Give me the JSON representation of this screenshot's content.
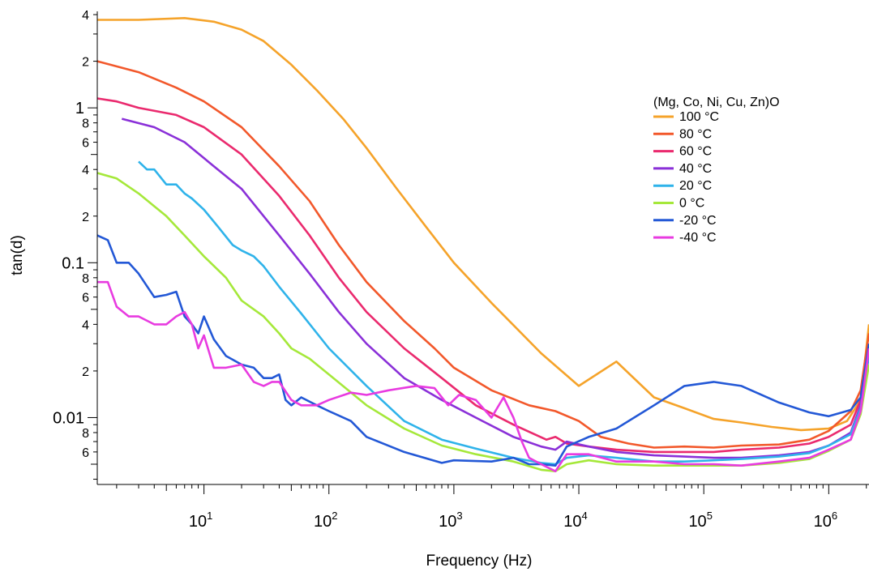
{
  "chart_data": {
    "type": "line",
    "xlabel": "Frequency (Hz)",
    "ylabel": "tan(d)",
    "xscale": "log",
    "yscale": "log",
    "xlim": [
      1.4,
      2100000
    ],
    "ylim": [
      0.0037,
      4.2
    ],
    "x_ticks": [
      {
        "base": "10",
        "exp": "1",
        "value": 10
      },
      {
        "base": "10",
        "exp": "2",
        "value": 100
      },
      {
        "base": "10",
        "exp": "3",
        "value": 1000
      },
      {
        "base": "10",
        "exp": "4",
        "value": 10000
      },
      {
        "base": "10",
        "exp": "5",
        "value": 100000
      },
      {
        "base": "10",
        "exp": "6",
        "value": 1000000
      }
    ],
    "y_major_ticks": [
      {
        "label": "1",
        "value": 1
      },
      {
        "label": "0.1",
        "value": 0.1
      },
      {
        "label": "0.01",
        "value": 0.01
      }
    ],
    "y_minor_labels": [
      {
        "label": "4",
        "value": 4
      },
      {
        "label": "2",
        "value": 2
      },
      {
        "label": "8",
        "value": 0.8
      },
      {
        "label": "6",
        "value": 0.6
      },
      {
        "label": "4",
        "value": 0.4
      },
      {
        "label": "2",
        "value": 0.2
      },
      {
        "label": "8",
        "value": 0.08
      },
      {
        "label": "6",
        "value": 0.06
      },
      {
        "label": "4",
        "value": 0.04
      },
      {
        "label": "2",
        "value": 0.02
      },
      {
        "label": "8",
        "value": 0.008
      },
      {
        "label": "6",
        "value": 0.006
      }
    ],
    "grid": false,
    "legend": {
      "title": "(Mg, Co, Ni, Cu, Zn)O",
      "position": "top-right"
    },
    "series": [
      {
        "name": "100 °C",
        "color": "#f5a32a",
        "x": [
          1.4,
          3,
          7,
          12,
          20,
          30,
          50,
          80,
          130,
          200,
          350,
          600,
          1000,
          2000,
          5000,
          10000,
          20000,
          40000,
          70000,
          120000,
          200000,
          350000,
          600000,
          1000000,
          1400000,
          1800000,
          2100000
        ],
        "y": [
          3.7,
          3.7,
          3.8,
          3.6,
          3.2,
          2.7,
          1.9,
          1.3,
          0.85,
          0.55,
          0.3,
          0.17,
          0.1,
          0.055,
          0.026,
          0.016,
          0.023,
          0.0135,
          0.0115,
          0.0098,
          0.0093,
          0.0087,
          0.0083,
          0.0085,
          0.0095,
          0.013,
          0.04
        ]
      },
      {
        "name": "80 °C",
        "color": "#f2582b",
        "x": [
          1.4,
          3,
          6,
          10,
          20,
          40,
          70,
          120,
          200,
          400,
          700,
          1000,
          2000,
          4000,
          6500,
          10000,
          15000,
          25000,
          40000,
          70000,
          120000,
          200000,
          400000,
          700000,
          1000000,
          1500000,
          1800000,
          2100000
        ],
        "y": [
          2.0,
          1.7,
          1.35,
          1.1,
          0.75,
          0.42,
          0.25,
          0.13,
          0.075,
          0.042,
          0.028,
          0.021,
          0.015,
          0.012,
          0.011,
          0.0095,
          0.0075,
          0.0068,
          0.0064,
          0.0065,
          0.0064,
          0.0066,
          0.0067,
          0.0072,
          0.0082,
          0.011,
          0.015,
          0.035
        ]
      },
      {
        "name": "60 °C",
        "color": "#ea2a6e",
        "x": [
          1.4,
          2,
          3,
          6,
          10,
          20,
          40,
          70,
          120,
          200,
          400,
          800,
          1500,
          3000,
          5500,
          6500,
          8000,
          12000,
          20000,
          40000,
          70000,
          120000,
          200000,
          400000,
          700000,
          1000000,
          1500000,
          1800000,
          2100000
        ],
        "y": [
          1.15,
          1.1,
          1.0,
          0.9,
          0.75,
          0.5,
          0.27,
          0.15,
          0.08,
          0.048,
          0.028,
          0.018,
          0.012,
          0.009,
          0.0072,
          0.0075,
          0.0068,
          0.0065,
          0.0062,
          0.006,
          0.006,
          0.006,
          0.0062,
          0.0064,
          0.0068,
          0.0075,
          0.009,
          0.013,
          0.03
        ]
      },
      {
        "name": "40 °C",
        "color": "#8a30d8",
        "x": [
          2.2,
          4,
          7,
          12,
          20,
          40,
          70,
          120,
          200,
          400,
          800,
          1500,
          3000,
          5000,
          6500,
          8000,
          12000,
          20000,
          40000,
          70000,
          120000,
          200000,
          400000,
          700000,
          1000000,
          1500000,
          1800000,
          2100000
        ],
        "y": [
          0.85,
          0.75,
          0.6,
          0.42,
          0.3,
          0.15,
          0.085,
          0.048,
          0.03,
          0.018,
          0.013,
          0.01,
          0.0075,
          0.0065,
          0.0062,
          0.007,
          0.0065,
          0.006,
          0.0057,
          0.0056,
          0.0055,
          0.0055,
          0.0057,
          0.006,
          0.0066,
          0.008,
          0.012,
          0.028
        ]
      },
      {
        "name": "20 °C",
        "color": "#2fb3ea",
        "x": [
          3,
          3.5,
          4,
          5,
          6,
          7,
          8,
          10,
          13,
          17,
          20,
          25,
          30,
          40,
          60,
          100,
          200,
          400,
          800,
          1500,
          3000,
          5000,
          6500,
          8000,
          12000,
          20000,
          40000,
          70000,
          120000,
          200000,
          400000,
          700000,
          1000000,
          1500000,
          1800000,
          2100000
        ],
        "y": [
          0.45,
          0.4,
          0.4,
          0.32,
          0.32,
          0.28,
          0.26,
          0.22,
          0.17,
          0.13,
          0.12,
          0.11,
          0.095,
          0.07,
          0.047,
          0.028,
          0.016,
          0.0095,
          0.0072,
          0.0063,
          0.0055,
          0.0051,
          0.005,
          0.0055,
          0.0057,
          0.0055,
          0.0052,
          0.0052,
          0.0053,
          0.0054,
          0.0056,
          0.0059,
          0.0066,
          0.0078,
          0.0115,
          0.025
        ]
      },
      {
        "name": "0 °C",
        "color": "#a5e83a",
        "x": [
          1.4,
          2,
          3,
          5,
          7,
          10,
          15,
          20,
          30,
          40,
          50,
          70,
          100,
          200,
          400,
          800,
          1500,
          3000,
          5000,
          6500,
          8000,
          12000,
          20000,
          40000,
          70000,
          120000,
          200000,
          400000,
          700000,
          1000000,
          1500000,
          1800000,
          2100000
        ],
        "y": [
          0.38,
          0.35,
          0.28,
          0.2,
          0.15,
          0.11,
          0.08,
          0.057,
          0.045,
          0.035,
          0.028,
          0.024,
          0.019,
          0.012,
          0.0085,
          0.0066,
          0.0058,
          0.0052,
          0.0046,
          0.0045,
          0.005,
          0.0053,
          0.005,
          0.0049,
          0.0049,
          0.0049,
          0.0049,
          0.0051,
          0.0054,
          0.0061,
          0.0072,
          0.0105,
          0.022
        ]
      },
      {
        "name": "-20 °C",
        "color": "#2358d6",
        "x": [
          1.4,
          1.7,
          2,
          2.5,
          3,
          4,
          5,
          6,
          7,
          8,
          9,
          10,
          12,
          15,
          20,
          25,
          30,
          35,
          40,
          45,
          50,
          60,
          80,
          100,
          150,
          200,
          400,
          800,
          1000,
          2000,
          3000,
          4000,
          5000,
          6500,
          8000,
          12000,
          20000,
          40000,
          70000,
          120000,
          200000,
          400000,
          700000,
          1000000,
          1500000,
          1800000,
          2100000
        ],
        "y": [
          0.15,
          0.14,
          0.1,
          0.1,
          0.085,
          0.06,
          0.062,
          0.065,
          0.045,
          0.04,
          0.035,
          0.045,
          0.032,
          0.025,
          0.022,
          0.021,
          0.018,
          0.018,
          0.019,
          0.013,
          0.012,
          0.0135,
          0.012,
          0.011,
          0.0095,
          0.0075,
          0.006,
          0.0051,
          0.0053,
          0.0052,
          0.0055,
          0.005,
          0.005,
          0.0049,
          0.0065,
          0.0075,
          0.0085,
          0.012,
          0.016,
          0.017,
          0.016,
          0.0125,
          0.0108,
          0.0102,
          0.0112,
          0.0135,
          0.03
        ]
      },
      {
        "name": "-40 °C",
        "color": "#e83be0",
        "x": [
          1.4,
          1.7,
          2,
          2.5,
          3,
          4,
          5,
          6,
          7,
          8,
          9,
          10,
          12,
          15,
          20,
          25,
          30,
          35,
          40,
          50,
          60,
          80,
          100,
          150,
          200,
          300,
          500,
          700,
          900,
          1100,
          1500,
          2000,
          2500,
          3000,
          3500,
          4000,
          5000,
          6500,
          8000,
          12000,
          20000,
          40000,
          70000,
          120000,
          200000,
          400000,
          700000,
          1000000,
          1500000,
          1800000,
          2100000
        ],
        "y": [
          0.075,
          0.075,
          0.052,
          0.045,
          0.045,
          0.04,
          0.04,
          0.045,
          0.048,
          0.04,
          0.028,
          0.034,
          0.021,
          0.021,
          0.022,
          0.017,
          0.016,
          0.017,
          0.017,
          0.013,
          0.012,
          0.012,
          0.013,
          0.0145,
          0.014,
          0.015,
          0.016,
          0.0155,
          0.012,
          0.014,
          0.013,
          0.01,
          0.0135,
          0.01,
          0.007,
          0.0055,
          0.005,
          0.0045,
          0.0058,
          0.0058,
          0.0052,
          0.0052,
          0.005,
          0.005,
          0.0049,
          0.0052,
          0.0055,
          0.0062,
          0.0072,
          0.011,
          0.028
        ]
      }
    ]
  }
}
